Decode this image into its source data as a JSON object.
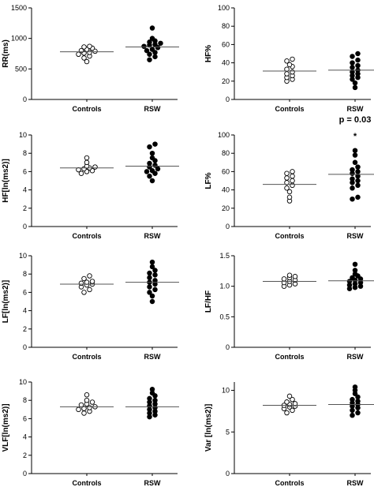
{
  "chart_data": [
    {
      "type": "scatter",
      "ylabel": "RR(ms)",
      "ylim": [
        0,
        1500
      ],
      "yticks": [
        "0",
        "500",
        "1000",
        "1500"
      ],
      "categories": [
        "Controls",
        "RSW"
      ],
      "series": [
        {
          "values": [
            620,
            680,
            710,
            740,
            760,
            770,
            790,
            800,
            820,
            840,
            860,
            870
          ],
          "mean": 780
        },
        {
          "values": [
            650,
            700,
            740,
            770,
            800,
            820,
            850,
            870,
            890,
            900,
            920,
            940,
            960,
            1000,
            1170
          ],
          "mean": 860
        }
      ],
      "annotation": ""
    },
    {
      "type": "scatter",
      "ylabel": "HF%",
      "ylim": [
        0,
        100
      ],
      "yticks": [
        "0",
        "20",
        "40",
        "60",
        "80",
        "100"
      ],
      "categories": [
        "Controls",
        "RSW"
      ],
      "series": [
        {
          "values": [
            20,
            22,
            24,
            26,
            28,
            30,
            33,
            36,
            38,
            42,
            44
          ],
          "mean": 31
        },
        {
          "values": [
            13,
            18,
            22,
            24,
            26,
            28,
            30,
            32,
            35,
            37,
            40,
            43,
            47,
            50
          ],
          "mean": 32
        }
      ],
      "annotation": ""
    },
    {
      "type": "scatter",
      "ylabel": "HF[ln(ms2)]",
      "ylim": [
        0,
        10
      ],
      "yticks": [
        "0",
        "2",
        "4",
        "6",
        "8",
        "10"
      ],
      "categories": [
        "Controls",
        "RSW"
      ],
      "series": [
        {
          "values": [
            5.8,
            6.0,
            6.1,
            6.2,
            6.3,
            6.4,
            6.5,
            6.6,
            7.0,
            7.5
          ],
          "mean": 6.4
        },
        {
          "values": [
            5.0,
            5.5,
            5.8,
            6.0,
            6.1,
            6.3,
            6.5,
            6.7,
            6.9,
            7.2,
            7.5,
            8.0,
            8.7,
            9.0
          ],
          "mean": 6.6
        }
      ],
      "annotation": ""
    },
    {
      "type": "scatter",
      "ylabel": "LF%",
      "ylim": [
        0,
        100
      ],
      "yticks": [
        "0",
        "20",
        "40",
        "60",
        "80",
        "100"
      ],
      "categories": [
        "Controls",
        "RSW"
      ],
      "series": [
        {
          "values": [
            28,
            32,
            38,
            42,
            45,
            48,
            50,
            53,
            55,
            58,
            60
          ],
          "mean": 46
        },
        {
          "values": [
            30,
            32,
            42,
            45,
            48,
            50,
            52,
            55,
            58,
            60,
            62,
            65,
            70,
            78,
            83
          ],
          "mean": 57
        }
      ],
      "annotation": "p = 0.03",
      "marker": "*"
    },
    {
      "type": "scatter",
      "ylabel": "LF[ln(ms2)]",
      "ylim": [
        0,
        10
      ],
      "yticks": [
        "0",
        "2",
        "4",
        "6",
        "8",
        "10"
      ],
      "categories": [
        "Controls",
        "RSW"
      ],
      "series": [
        {
          "values": [
            6.0,
            6.3,
            6.6,
            6.8,
            6.9,
            7.0,
            7.1,
            7.2,
            7.5,
            7.8
          ],
          "mean": 6.9
        },
        {
          "values": [
            5.0,
            5.6,
            6.0,
            6.3,
            6.6,
            6.9,
            7.1,
            7.3,
            7.6,
            7.9,
            8.1,
            8.4,
            8.8,
            9.3
          ],
          "mean": 7.1
        }
      ],
      "annotation": ""
    },
    {
      "type": "scatter",
      "ylabel": "LF/HF",
      "ylim": [
        0,
        1.5
      ],
      "yticks": [
        "0",
        "0.5",
        "1.0",
        "1.5"
      ],
      "categories": [
        "Controls",
        "RSW"
      ],
      "series": [
        {
          "values": [
            1.0,
            1.02,
            1.04,
            1.06,
            1.08,
            1.1,
            1.12,
            1.14,
            1.16,
            1.18
          ],
          "mean": 1.08
        },
        {
          "values": [
            0.96,
            0.98,
            1.0,
            1.02,
            1.04,
            1.06,
            1.08,
            1.1,
            1.12,
            1.14,
            1.17,
            1.2,
            1.26,
            1.36
          ],
          "mean": 1.09
        }
      ],
      "annotation": ""
    },
    {
      "type": "scatter",
      "ylabel": "VLF[ln(ms2)]",
      "ylim": [
        0,
        10
      ],
      "yticks": [
        "0",
        "2",
        "4",
        "6",
        "8",
        "10"
      ],
      "categories": [
        "Controls",
        "RSW"
      ],
      "series": [
        {
          "values": [
            6.6,
            6.8,
            7.0,
            7.1,
            7.2,
            7.3,
            7.5,
            7.6,
            7.8,
            8.0,
            8.6
          ],
          "mean": 7.3
        },
        {
          "values": [
            6.2,
            6.4,
            6.6,
            6.8,
            7.0,
            7.2,
            7.4,
            7.6,
            7.8,
            8.0,
            8.2,
            8.5,
            8.8,
            9.2
          ],
          "mean": 7.3
        }
      ],
      "annotation": ""
    },
    {
      "type": "scatter",
      "ylabel": "Var [ln(ms2)]",
      "ylim": [
        0,
        11
      ],
      "yticks": [
        "0",
        "5",
        "10"
      ],
      "ytickvalues": [
        0,
        5,
        10
      ],
      "categories": [
        "Controls",
        "RSW"
      ],
      "series": [
        {
          "values": [
            7.3,
            7.6,
            7.8,
            8.0,
            8.1,
            8.2,
            8.3,
            8.4,
            8.6,
            8.9,
            9.3
          ],
          "mean": 8.2
        },
        {
          "values": [
            7.0,
            7.3,
            7.6,
            7.9,
            8.1,
            8.3,
            8.5,
            8.7,
            8.9,
            9.2,
            9.6,
            10.0,
            10.4
          ],
          "mean": 8.3
        }
      ],
      "annotation": ""
    }
  ]
}
